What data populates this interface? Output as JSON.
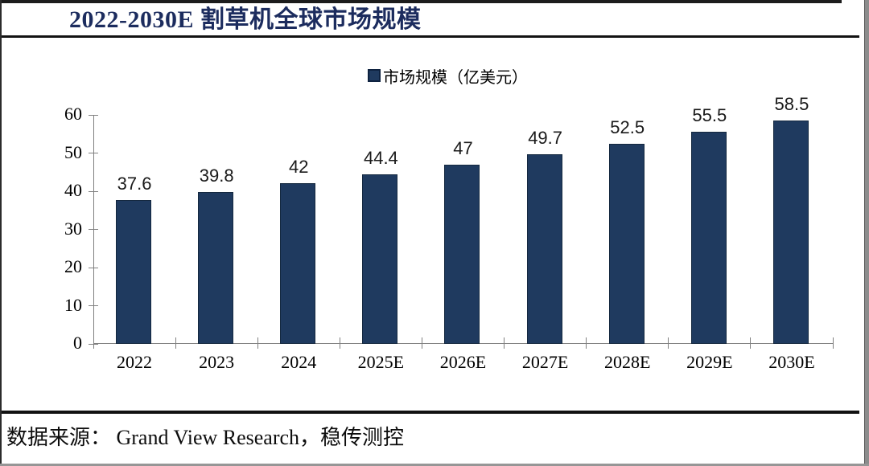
{
  "header": {
    "title": "2022-2030E 割草机全球市场规模",
    "title_color": "#1c2c5e"
  },
  "chart_data": {
    "type": "bar",
    "title": "2022-2030E 割草机全球市场规模",
    "legend_label": "市场规模（亿美元）",
    "legend_position": "top",
    "series": [
      {
        "name": "市场规模（亿美元）",
        "values": [
          37.6,
          39.8,
          42,
          44.4,
          47,
          49.7,
          52.5,
          55.5,
          58.5
        ]
      }
    ],
    "categories": [
      "2022",
      "2023",
      "2024",
      "2025E",
      "2026E",
      "2027E",
      "2028E",
      "2029E",
      "2030E"
    ],
    "values": [
      37.6,
      39.8,
      42,
      44.4,
      47,
      49.7,
      52.5,
      55.5,
      58.5
    ],
    "value_labels": [
      "37.6",
      "39.8",
      "42",
      "44.4",
      "47",
      "49.7",
      "52.5",
      "55.5",
      "58.5"
    ],
    "xlabel": "",
    "ylabel": "",
    "ylim": [
      0,
      60
    ],
    "yticks": [
      0,
      10,
      20,
      30,
      40,
      50,
      60
    ],
    "grid": false,
    "bar_color": "#1f3a5f",
    "bar_border_color": "#14283f",
    "axis_color": "#808080",
    "value_label_color": "#1a1a1a"
  },
  "footer": {
    "source": "数据来源： Grand View Research，稳传测控"
  }
}
